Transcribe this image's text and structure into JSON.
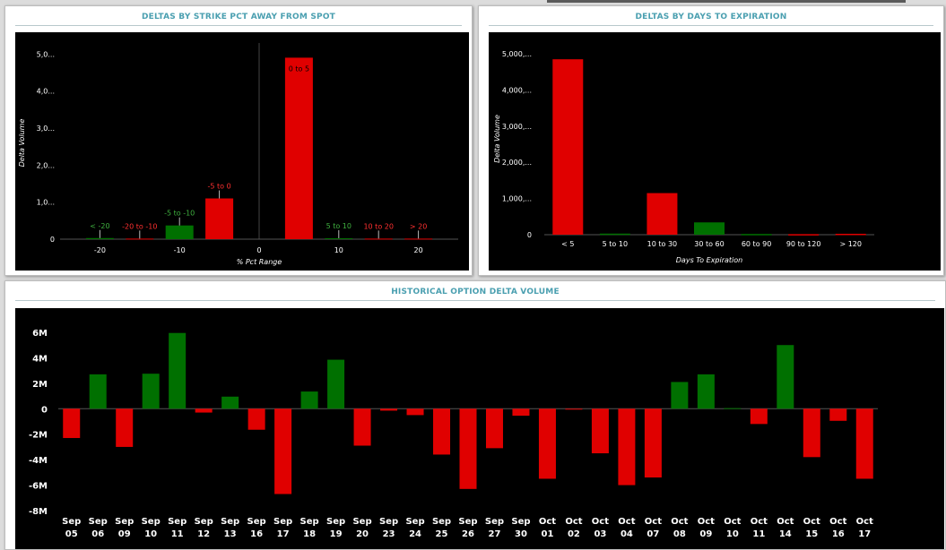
{
  "panels": {
    "strike": {
      "title": "DELTAS BY STRIKE PCT AWAY FROM SPOT"
    },
    "dte": {
      "title": "DELTAS BY DAYS TO EXPIRATION"
    },
    "history": {
      "title": "HISTORICAL OPTION DELTA VOLUME"
    }
  },
  "colors": {
    "positive": "#007000",
    "negative": "#e00000",
    "background": "#000000",
    "text": "#ffffff",
    "title": "#4a9fb0"
  },
  "chart_data": [
    {
      "type": "bar",
      "title": "DELTAS BY STRIKE PCT AWAY FROM SPOT",
      "xlabel": "% Pct Range",
      "ylabel": "Delta Volume",
      "xlim": [
        -25,
        25
      ],
      "ylim": [
        0,
        5200000
      ],
      "xticks": [
        -20,
        -10,
        0,
        10,
        20
      ],
      "xtick_labels": [
        "-20",
        "-10",
        "0",
        "10",
        "20"
      ],
      "yticks": [
        0,
        1000000,
        2000000,
        3000000,
        4000000,
        5000000
      ],
      "ytick_labels": [
        "0",
        "1,0...",
        "2,0...",
        "3,0...",
        "4,0...",
        "5,0..."
      ],
      "bars": [
        {
          "label": "< -20",
          "x": -20,
          "value": 30000,
          "color": "positive"
        },
        {
          "label": "-20 to -10",
          "x": -15,
          "value": 15000,
          "color": "negative"
        },
        {
          "label": "-5 to -10",
          "x": -10,
          "value": 370000,
          "color": "positive"
        },
        {
          "label": "-5 to 0",
          "x": -5,
          "value": 1100000,
          "color": "negative"
        },
        {
          "label": "0 to 5",
          "x": 5,
          "value": 4900000,
          "color": "negative"
        },
        {
          "label": "5 to 10",
          "x": 10,
          "value": 25000,
          "color": "positive"
        },
        {
          "label": "10 to 20",
          "x": 15,
          "value": 15000,
          "color": "negative"
        },
        {
          "label": "> 20",
          "x": 20,
          "value": 15000,
          "color": "negative"
        }
      ]
    },
    {
      "type": "bar",
      "title": "DELTAS BY DAYS TO EXPIRATION",
      "xlabel": "Days To Expiration",
      "ylabel": "Delta Volume",
      "ylim": [
        0,
        5300000
      ],
      "yticks": [
        0,
        1000000,
        2000000,
        3000000,
        4000000,
        5000000
      ],
      "ytick_labels": [
        "0",
        "1,000,...",
        "2,000,...",
        "3,000,...",
        "4,000,...",
        "5,000,..."
      ],
      "categories": [
        "< 5",
        "5 to 10",
        "10 to 30",
        "30 to 60",
        "60 to 90",
        "90 to 120",
        "> 120"
      ],
      "values": [
        4850000,
        30000,
        1150000,
        340000,
        20000,
        15000,
        25000
      ],
      "bar_colors": [
        "negative",
        "positive",
        "negative",
        "positive",
        "positive",
        "negative",
        "negative"
      ]
    },
    {
      "type": "bar",
      "title": "HISTORICAL OPTION DELTA VOLUME",
      "xlabel": "",
      "ylabel": "",
      "ylim": [
        -8000000,
        6000000
      ],
      "yticks": [
        -8000000,
        -6000000,
        -4000000,
        -2000000,
        0,
        2000000,
        4000000,
        6000000
      ],
      "ytick_labels": [
        "-8M",
        "-6M",
        "-4M",
        "-2M",
        "0",
        "2M",
        "4M",
        "6M"
      ],
      "categories": [
        [
          "Sep",
          "05"
        ],
        [
          "Sep",
          "06"
        ],
        [
          "Sep",
          "09"
        ],
        [
          "Sep",
          "10"
        ],
        [
          "Sep",
          "11"
        ],
        [
          "Sep",
          "12"
        ],
        [
          "Sep",
          "13"
        ],
        [
          "Sep",
          "16"
        ],
        [
          "Sep",
          "17"
        ],
        [
          "Sep",
          "18"
        ],
        [
          "Sep",
          "19"
        ],
        [
          "Sep",
          "20"
        ],
        [
          "Sep",
          "23"
        ],
        [
          "Sep",
          "24"
        ],
        [
          "Sep",
          "25"
        ],
        [
          "Sep",
          "26"
        ],
        [
          "Sep",
          "27"
        ],
        [
          "Sep",
          "30"
        ],
        [
          "Oct",
          "01"
        ],
        [
          "Oct",
          "02"
        ],
        [
          "Oct",
          "03"
        ],
        [
          "Oct",
          "04"
        ],
        [
          "Oct",
          "07"
        ],
        [
          "Oct",
          "08"
        ],
        [
          "Oct",
          "09"
        ],
        [
          "Oct",
          "10"
        ],
        [
          "Oct",
          "11"
        ],
        [
          "Oct",
          "14"
        ],
        [
          "Oct",
          "15"
        ],
        [
          "Oct",
          "16"
        ],
        [
          "Oct",
          "17"
        ]
      ],
      "values": [
        -2300000,
        2700000,
        -3000000,
        2750000,
        5950000,
        -300000,
        950000,
        -1650000,
        -6700000,
        1350000,
        3850000,
        -2900000,
        -150000,
        -500000,
        -3600000,
        -6300000,
        -3100000,
        -550000,
        -5500000,
        -50000,
        -3500000,
        -6000000,
        -5400000,
        2100000,
        2700000,
        50000,
        -1200000,
        5000000,
        -3800000,
        -950000,
        -5500000
      ]
    }
  ]
}
